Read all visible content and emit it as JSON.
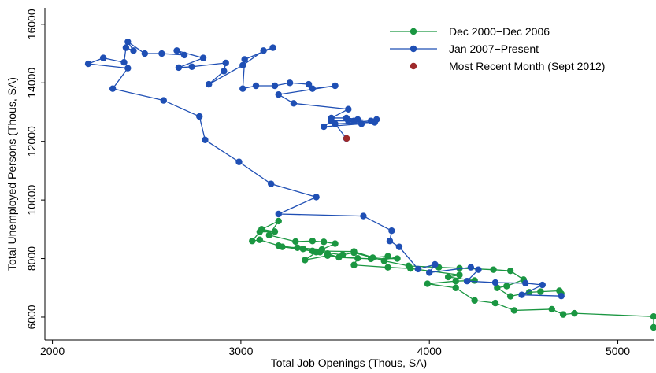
{
  "chart_data": {
    "type": "line",
    "x_label": "Total Job Openings (Thous, SA)",
    "y_label": "Total Unemployed Persons (Thous, SA)",
    "xlim": [
      1960,
      5190
    ],
    "ylim": [
      5220,
      16560
    ],
    "xticks": [
      2000,
      3000,
      4000,
      5000
    ],
    "yticks": [
      6000,
      8000,
      10000,
      12000,
      14000,
      16000
    ],
    "grid": false,
    "legend": "top-right",
    "series": [
      {
        "name": "Dec 2000−Dec 2006",
        "color": "#1a9641",
        "line": true,
        "x": [
          5190,
          5190,
          4770,
          4710,
          4650,
          4450,
          4350,
          4240,
          4140,
          3990,
          4140,
          4240,
          4100,
          4160,
          3900,
          3780,
          3600,
          3620,
          3460,
          3340,
          3400,
          3330,
          3200,
          3100,
          3060,
          3100,
          3180,
          3110,
          3200,
          3150,
          3290,
          3380,
          3440,
          3500,
          3430,
          3300,
          3220,
          3420,
          3540,
          3600,
          3700,
          3780,
          3830,
          3690,
          3520,
          3460,
          3380,
          3600,
          3760,
          3890,
          4050,
          4160,
          4340,
          4430,
          4500,
          4410,
          4360,
          4430,
          4530,
          4590,
          4690,
          4700
        ],
        "y": [
          5650,
          6020,
          6130,
          6090,
          6270,
          6230,
          6480,
          6570,
          7000,
          7140,
          7230,
          7250,
          7370,
          7440,
          7660,
          7700,
          7780,
          8010,
          8100,
          7950,
          8220,
          8330,
          8440,
          8640,
          8600,
          8910,
          8920,
          9000,
          9280,
          8800,
          8580,
          8600,
          8570,
          8510,
          8310,
          8370,
          8400,
          8220,
          8130,
          8200,
          8030,
          8080,
          8000,
          7990,
          8040,
          8170,
          8260,
          8240,
          7920,
          7750,
          7700,
          7670,
          7620,
          7580,
          7280,
          7060,
          7000,
          6710,
          6850,
          6870,
          6900,
          6800
        ]
      },
      {
        "name": "Jan 2007−Present",
        "color": "#1f4fb4",
        "line": true,
        "x": [
          4700,
          4490,
          4600,
          4510,
          4350,
          4200,
          4260,
          4220,
          4000,
          4030,
          3940,
          3840,
          3790,
          3800,
          3650,
          3200,
          3400,
          3160,
          2990,
          2810,
          2780,
          2590,
          2320,
          2400,
          2190,
          2270,
          2380,
          2390,
          2430,
          2400,
          2490,
          2580,
          2700,
          2660,
          2800,
          2670,
          2740,
          2920,
          2910,
          2830,
          3010,
          3120,
          3170,
          3020,
          3010,
          3080,
          3180,
          3260,
          3360,
          3380,
          3500,
          3200,
          3280,
          3570,
          3480,
          3560,
          3620,
          3690,
          3720,
          3640,
          3440,
          3480,
          3570,
          3600,
          3710,
          3500,
          3560
        ],
        "y": [
          6720,
          6760,
          7100,
          7160,
          7180,
          7230,
          7620,
          7700,
          7520,
          7800,
          7640,
          8400,
          8600,
          8950,
          9450,
          9520,
          10100,
          10550,
          11300,
          12050,
          12850,
          13400,
          13800,
          14500,
          14650,
          14850,
          14700,
          15200,
          15100,
          15400,
          15000,
          15000,
          14950,
          15100,
          14850,
          14520,
          14550,
          14680,
          14400,
          13950,
          14600,
          15100,
          15200,
          14800,
          13800,
          13900,
          13900,
          14000,
          13950,
          13800,
          13900,
          13600,
          13300,
          13100,
          12800,
          12800,
          12750,
          12700,
          12750,
          12600,
          12500,
          12700,
          12700,
          12700,
          12650,
          12600,
          12100
        ]
      },
      {
        "name": "Most Recent Month (Sept 2012)",
        "color": "#9e2a2b",
        "line": false,
        "x": [
          3561
        ],
        "y": [
          12102
        ]
      }
    ]
  }
}
